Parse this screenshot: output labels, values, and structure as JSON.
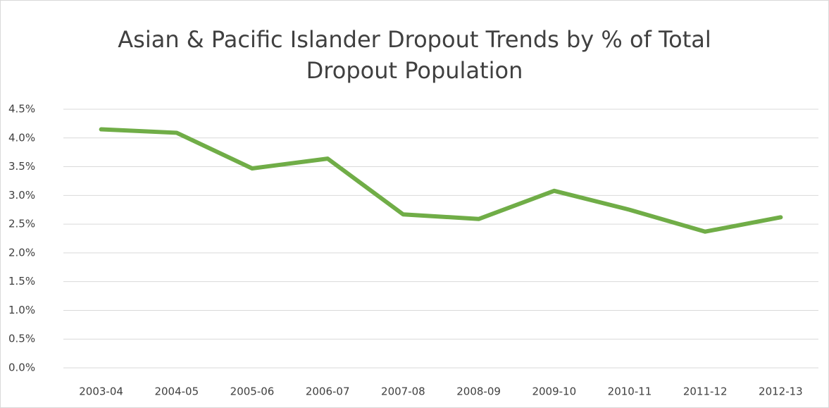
{
  "chart_data": {
    "type": "line",
    "title": "Asian & Pacific Islander Dropout Trends by % of Total Dropout Population",
    "categories": [
      "2003-04",
      "2004-05",
      "2005-06",
      "2006-07",
      "2007-08",
      "2008-09",
      "2009-10",
      "2010-11",
      "2011-12",
      "2012-13"
    ],
    "series": [
      {
        "color": "#70ad47",
        "values": [
          4.15,
          4.09,
          3.47,
          3.64,
          2.67,
          2.59,
          3.08,
          2.75,
          2.37,
          2.62
        ]
      }
    ],
    "ylim": [
      0,
      4.5
    ],
    "yticks": [
      {
        "value": 0,
        "label": "0.0%"
      },
      {
        "value": 0.5,
        "label": "0.5%"
      },
      {
        "value": 1,
        "label": "1.0%"
      },
      {
        "value": 1.5,
        "label": "1.5%"
      },
      {
        "value": 2,
        "label": "2.0%"
      },
      {
        "value": 2.5,
        "label": "2.5%"
      },
      {
        "value": 3,
        "label": "3.0%"
      },
      {
        "value": 3.5,
        "label": "3.5%"
      },
      {
        "value": 4,
        "label": "4.0%"
      },
      {
        "value": 4.5,
        "label": "4.5%"
      }
    ],
    "grid": true
  }
}
